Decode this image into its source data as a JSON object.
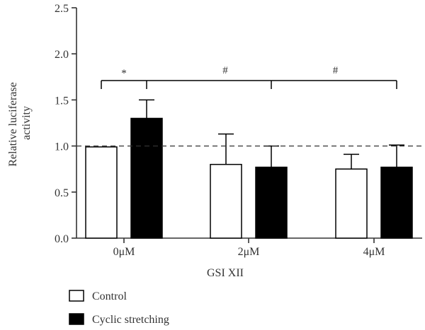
{
  "chart_data": {
    "type": "bar",
    "categories": [
      "0μM",
      "2μM",
      "4μM"
    ],
    "series": [
      {
        "name": "Control",
        "values": [
          0.99,
          0.8,
          0.75
        ],
        "errors": [
          0.0,
          0.33,
          0.16
        ],
        "color": "#ffffff"
      },
      {
        "name": "Cyclic stretching",
        "values": [
          1.3,
          0.77,
          0.77
        ],
        "errors": [
          0.2,
          0.23,
          0.24
        ],
        "color": "#000000"
      }
    ],
    "xlabel": "GSI XII",
    "ylabel": "Relative luciferase activity",
    "ylabel_lines": [
      "Relative luciferase",
      "activity"
    ],
    "ylim": [
      0,
      2.5
    ],
    "yticks": [
      "0.0",
      "0.5",
      "1.0",
      "1.5",
      "2.0",
      "2.5"
    ],
    "reference_line": 1.0,
    "grid": false,
    "legend_position": "bottom-left",
    "annotations": [
      "*",
      "#",
      "#"
    ]
  }
}
